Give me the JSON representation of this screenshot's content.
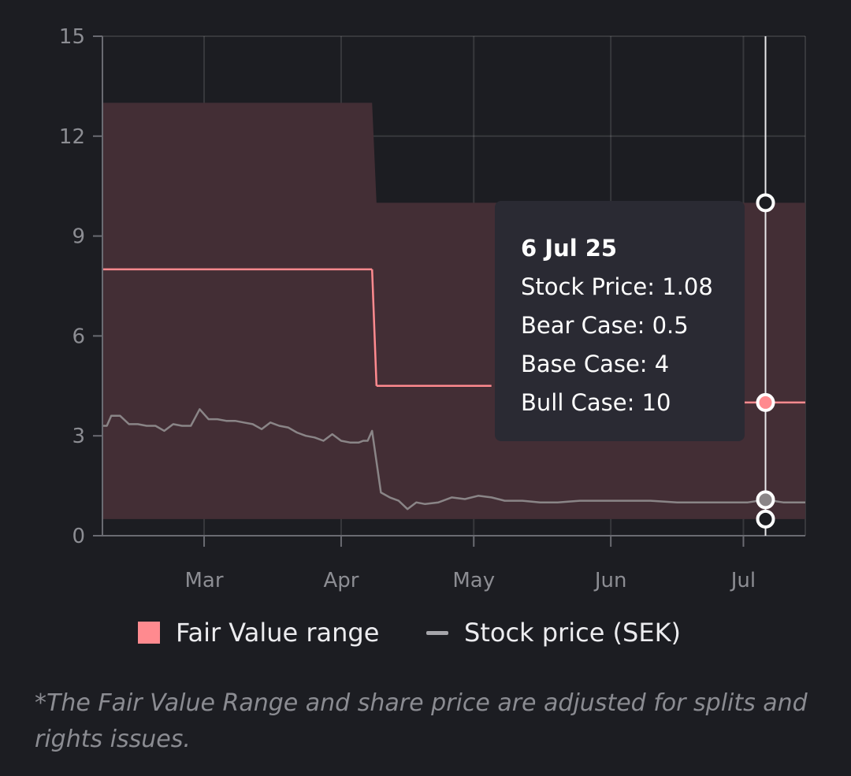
{
  "chart_data": {
    "type": "area",
    "xlabel": "",
    "ylabel": "",
    "x_range": [
      "2025-02-06",
      "2025-07-15"
    ],
    "ylim": [
      0,
      15
    ],
    "yticks": [
      0,
      3,
      6,
      9,
      12,
      15
    ],
    "xticks": [
      {
        "label": "Mar",
        "date": "2025-03-01"
      },
      {
        "label": "Apr",
        "date": "2025-04-01"
      },
      {
        "label": "May",
        "date": "2025-05-01"
      },
      {
        "label": "Jun",
        "date": "2025-06-01"
      },
      {
        "label": "Jul",
        "date": "2025-07-01"
      }
    ],
    "grid": true,
    "colors": {
      "fair_value": "#ff8a8f",
      "band": "#432e35",
      "stock": "#8a8587",
      "cursor": "#e8e8ea"
    },
    "fair_value_range": {
      "dates": [
        "2025-02-06",
        "2025-04-08",
        "2025-04-09",
        "2025-07-15"
      ],
      "bear": [
        0.5,
        0.5,
        0.5,
        0.5
      ],
      "base": [
        8,
        8,
        4.5,
        4
      ],
      "bull": [
        13,
        13,
        10,
        10
      ],
      "base_steps": [
        {
          "from": "2025-02-06",
          "to": "2025-04-08",
          "value": 8
        },
        {
          "from": "2025-04-09",
          "to": "2025-05-05",
          "value": 4.5
        },
        {
          "from": "2025-06-05",
          "to": "2025-07-15",
          "value": 4
        }
      ]
    },
    "stock_price": {
      "dates": [
        "2025-02-06",
        "2025-02-07",
        "2025-02-08",
        "2025-02-10",
        "2025-02-12",
        "2025-02-14",
        "2025-02-16",
        "2025-02-18",
        "2025-02-20",
        "2025-02-22",
        "2025-02-24",
        "2025-02-26",
        "2025-02-28",
        "2025-03-02",
        "2025-03-04",
        "2025-03-06",
        "2025-03-08",
        "2025-03-10",
        "2025-03-12",
        "2025-03-14",
        "2025-03-16",
        "2025-03-18",
        "2025-03-20",
        "2025-03-22",
        "2025-03-24",
        "2025-03-26",
        "2025-03-28",
        "2025-03-30",
        "2025-04-01",
        "2025-04-03",
        "2025-04-05",
        "2025-04-06",
        "2025-04-07",
        "2025-04-08",
        "2025-04-10",
        "2025-04-12",
        "2025-04-14",
        "2025-04-16",
        "2025-04-18",
        "2025-04-20",
        "2025-04-23",
        "2025-04-26",
        "2025-04-29",
        "2025-05-02",
        "2025-05-05",
        "2025-05-08",
        "2025-05-12",
        "2025-05-16",
        "2025-05-20",
        "2025-05-25",
        "2025-05-30",
        "2025-06-04",
        "2025-06-10",
        "2025-06-16",
        "2025-06-22",
        "2025-06-28",
        "2025-07-02",
        "2025-07-06",
        "2025-07-10",
        "2025-07-15"
      ],
      "values": [
        3.3,
        3.3,
        3.6,
        3.6,
        3.35,
        3.35,
        3.3,
        3.3,
        3.15,
        3.35,
        3.3,
        3.3,
        3.8,
        3.5,
        3.5,
        3.45,
        3.45,
        3.4,
        3.35,
        3.2,
        3.4,
        3.3,
        3.25,
        3.1,
        3.0,
        2.95,
        2.85,
        3.05,
        2.85,
        2.8,
        2.8,
        2.85,
        2.85,
        3.15,
        1.3,
        1.15,
        1.05,
        0.8,
        1.0,
        0.95,
        1.0,
        1.15,
        1.1,
        1.2,
        1.15,
        1.05,
        1.05,
        1.0,
        1.0,
        1.05,
        1.05,
        1.05,
        1.05,
        1.0,
        1.0,
        1.0,
        1.0,
        1.08,
        1.0,
        1.0
      ]
    },
    "cursor": {
      "date": "2025-07-06",
      "points": [
        10,
        4,
        1.08,
        0.5
      ]
    }
  },
  "tooltip": {
    "date": "6 Jul 25",
    "lines": [
      "Stock Price: 1.08",
      "Bear Case: 0.5",
      "Base Case: 4",
      "Bull Case: 10"
    ]
  },
  "legend": {
    "fair_value_label": "Fair Value range",
    "stock_label": "Stock price (SEK)"
  },
  "footnote": "*The Fair Value Range and share price are adjusted for splits and rights issues."
}
